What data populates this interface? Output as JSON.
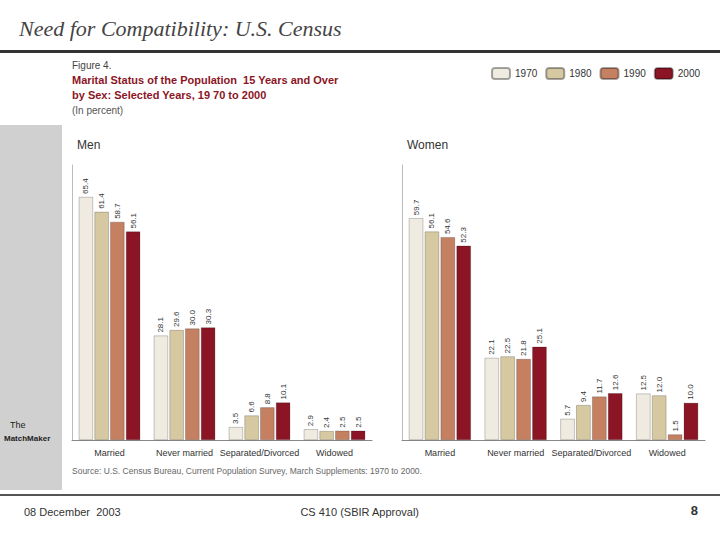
{
  "title": "Need for Compatibility: U.S. Census",
  "annotations": [
    "Figure 4.",
    "Marital Status of the Population  15 Years and Over",
    "by Sex: Selected Years, 19 70 to 2000",
    "(In percent)",
    "Source: U.S. Census Bureau, Current Population Survey, March Supplements: 1970 to 2000.",
    "08 December  2003",
    "CS 410 (SBIR Approval)",
    "8",
    "The",
    "MatchMaker"
  ],
  "chart_data": [
    {
      "type": "bar",
      "title": "Men",
      "categories": [
        "Married",
        "Never married",
        "Separated/Divorced",
        "Widowed"
      ],
      "series": [
        {
          "name": "1970",
          "color": "#f0ebe0",
          "values": [
            65.4,
            28.1,
            3.5,
            2.9
          ]
        },
        {
          "name": "1980",
          "color": "#d6c9a2",
          "values": [
            61.4,
            29.6,
            6.6,
            2.4
          ]
        },
        {
          "name": "1990",
          "color": "#c48060",
          "values": [
            58.7,
            30.0,
            8.8,
            2.5
          ],
          "value_labels": [
            "58.7",
            "30.0",
            "8.8",
            "2.5"
          ]
        },
        {
          "name": "2000",
          "color": "#8b1525",
          "values": [
            56.1,
            30.3,
            10.1,
            2.5
          ]
        }
      ],
      "ylim": [
        0,
        74
      ],
      "grid": false,
      "tick_labels": "x",
      "data_labels": true,
      "legend": "upper right"
    },
    {
      "type": "bar",
      "title": "Women",
      "categories": [
        "Married",
        "Never married",
        "Separated/Divorced",
        "Widowed"
      ],
      "series": [
        {
          "name": "1970",
          "color": "#f0ebe0",
          "values": [
            59.7,
            22.1,
            5.7,
            12.5
          ]
        },
        {
          "name": "1980",
          "color": "#d6c9a2",
          "values": [
            56.1,
            22.5,
            9.4,
            12.0
          ],
          "value_labels": [
            "56.1",
            "22.5",
            "9.4",
            "12.0"
          ]
        },
        {
          "name": "1990",
          "color": "#c48060",
          "values": [
            54.6,
            21.8,
            11.7,
            1.5
          ]
        },
        {
          "name": "2000",
          "color": "#8b1525",
          "values": [
            52.3,
            25.1,
            12.6,
            10.0
          ],
          "value_labels": [
            "52.3",
            "25.1",
            "12.6",
            "10.0"
          ]
        }
      ],
      "ylim": [
        0,
        74
      ],
      "grid": false,
      "tick_labels": "x",
      "data_labels": true
    }
  ]
}
